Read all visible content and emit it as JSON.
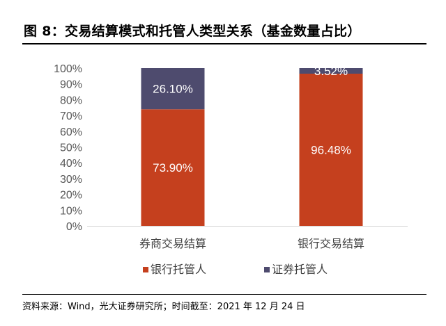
{
  "header": {
    "title": "图 8：交易结算模式和托管人类型关系（基金数量占比）"
  },
  "footer": {
    "source": "资料来源：Wind，光大证券研究所；时间截至：2021 年 12 月 24 日"
  },
  "chart_data": {
    "type": "bar",
    "stacked": true,
    "categories": [
      "券商交易结算",
      "银行交易结算"
    ],
    "series": [
      {
        "name": "银行托管人",
        "values": [
          73.9,
          96.48
        ],
        "labels": [
          "73.90%",
          "96.48%"
        ],
        "color": "#C5401E"
      },
      {
        "name": "证券托管人",
        "values": [
          26.1,
          3.52
        ],
        "labels": [
          "26.10%",
          "3.52%"
        ],
        "color": "#4E4B6E"
      }
    ],
    "y_ticks": [
      "0%",
      "10%",
      "20%",
      "30%",
      "40%",
      "50%",
      "60%",
      "70%",
      "80%",
      "90%",
      "100%"
    ],
    "ylim": [
      0,
      100
    ],
    "grid": false,
    "legend_position": "bottom"
  }
}
